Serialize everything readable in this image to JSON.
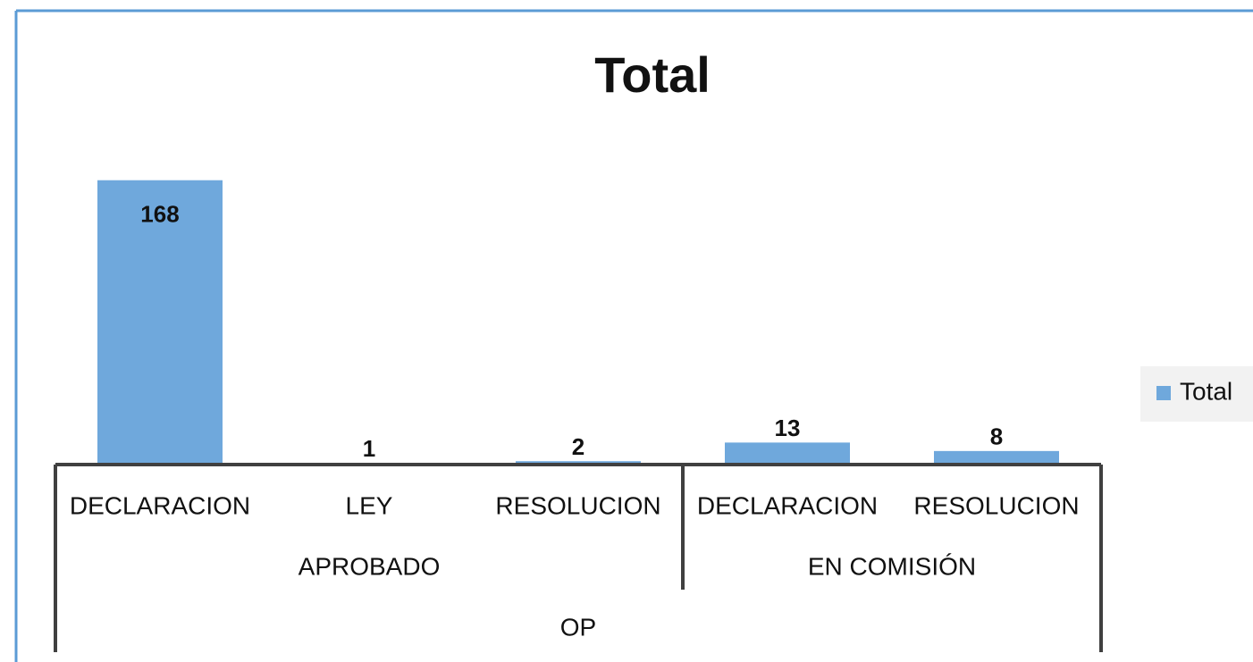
{
  "chart_data": {
    "type": "bar",
    "title": "Total",
    "groups": [
      {
        "name": "APROBADO",
        "categories": [
          "DECLARACION",
          "LEY",
          "RESOLUCION"
        ]
      },
      {
        "name": "EN COMISIÓN",
        "categories": [
          "DECLARACION",
          "RESOLUCION"
        ]
      }
    ],
    "outer_group": "OP",
    "series": [
      {
        "name": "Total",
        "color": "#6fa8dc",
        "values": [
          168,
          1,
          2,
          13,
          8
        ]
      }
    ],
    "ylim": [
      0,
      180
    ],
    "legend": "right"
  }
}
